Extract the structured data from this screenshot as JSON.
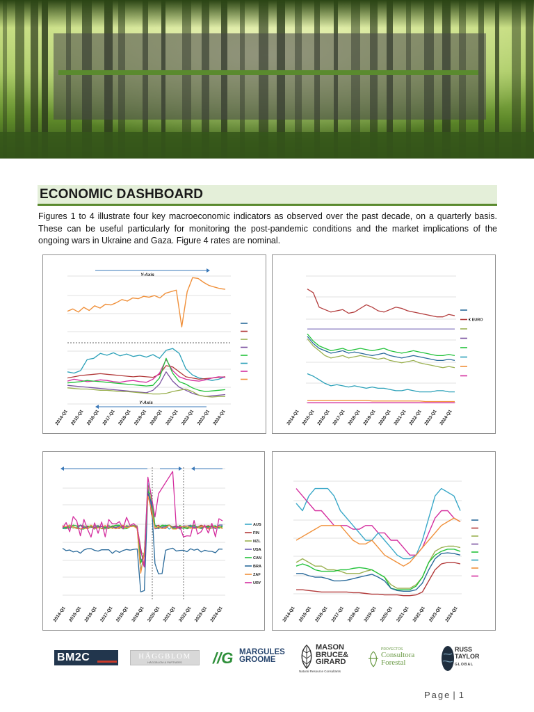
{
  "header": {
    "title": "ECONOMIC DASHBOARD",
    "intro": "Figures 1 to 4 illustrate four key macroeconomic indicators as observed over the past decade, on a quarterly basis. These can be useful particularly for monitoring the post-pandemic conditions and the market implications of the ongoing wars in Ukraine and Gaza. Figure 4 rates are nominal."
  },
  "colors": {
    "accent": "#5a8a2e",
    "title_bg": "#e4efd9"
  },
  "chart_data": [
    {
      "type": "line",
      "x_ticks": [
        "2014-Q1",
        "2015-Q1",
        "2016-Q1",
        "2017-Q1",
        "2018-Q1",
        "2019-Q1",
        "2020-Q1",
        "2021-Q1",
        "2022-Q1",
        "2023-Q1",
        "2024-Q1"
      ],
      "annotations": [
        "Y-Axis",
        "Y-Axis"
      ],
      "grid": true,
      "legend": "right",
      "series": [
        {
          "color": "#f0903a",
          "panel": "upper",
          "values": [
            55,
            58,
            54,
            60,
            56,
            62,
            59,
            64,
            63,
            66,
            70,
            68,
            72,
            71,
            74,
            73,
            75,
            72,
            78,
            80,
            82,
            35,
            80,
            98,
            97,
            92,
            88,
            86,
            84,
            83
          ]
        },
        {
          "color": "#2aa0b8",
          "values": [
            50,
            48,
            52,
            70,
            72,
            80,
            77,
            81,
            76,
            79,
            75,
            77,
            74,
            78,
            72,
            85,
            88,
            80,
            55,
            45,
            40,
            38,
            36,
            38,
            42
          ]
        },
        {
          "color": "#b23a3a",
          "values": [
            40,
            42,
            44,
            45,
            46,
            47,
            46,
            45,
            44,
            43,
            42,
            43,
            42,
            41,
            46,
            60,
            58,
            50,
            42,
            40,
            38,
            39,
            40,
            41,
            42
          ]
        },
        {
          "color": "#d42d9e",
          "values": [
            35,
            38,
            36,
            34,
            35,
            37,
            36,
            34,
            33,
            35,
            36,
            34,
            33,
            38,
            48,
            70,
            52,
            42,
            38,
            36,
            35,
            37,
            40,
            42,
            41
          ]
        },
        {
          "color": "#22c23a",
          "values": [
            32,
            33,
            34,
            36,
            35,
            34,
            33,
            32,
            31,
            30,
            29,
            28,
            27,
            28,
            40,
            72,
            48,
            34,
            30,
            24,
            20,
            18,
            19,
            20,
            21
          ]
        },
        {
          "color": "#7a52a0",
          "values": [
            28,
            27,
            26,
            25,
            24,
            23,
            22,
            21,
            20,
            19,
            18,
            17,
            16,
            20,
            30,
            50,
            35,
            25,
            20,
            15,
            12,
            10,
            11,
            12,
            13
          ]
        },
        {
          "color": "#9ab050",
          "values": [
            24,
            23,
            22,
            22,
            21,
            20,
            20,
            19,
            18,
            18,
            17,
            16,
            15,
            14,
            14,
            15,
            18,
            20,
            22,
            18,
            12,
            10,
            9,
            10,
            10
          ]
        }
      ]
    },
    {
      "type": "line",
      "x_ticks": [
        "2014-Q1",
        "2015-Q1",
        "2016-Q1",
        "2017-Q1",
        "2018-Q1",
        "2019-Q1",
        "2020-Q1",
        "2021-Q1",
        "2022-Q1",
        "2023-Q1",
        "2024-Q1"
      ],
      "legend": "right",
      "legend_labels": [
        "€ EURO"
      ],
      "series": [
        {
          "color": "#b23a3a",
          "values": [
            95,
            92,
            80,
            78,
            76,
            77,
            78,
            75,
            76,
            79,
            82,
            80,
            77,
            76,
            78,
            80,
            79,
            77,
            76,
            75,
            74,
            73,
            72,
            72,
            74,
            73
          ]
        },
        {
          "color": "#6a5ab0",
          "values": [
            62,
            62,
            62,
            62,
            62,
            62,
            62,
            62,
            62,
            62,
            62,
            62,
            62,
            62,
            62,
            62,
            62,
            62,
            62,
            62,
            62,
            62,
            62,
            62,
            62,
            62
          ]
        },
        {
          "color": "#22c23a",
          "values": [
            58,
            52,
            48,
            46,
            44,
            45,
            46,
            44,
            45,
            46,
            45,
            44,
            45,
            46,
            44,
            43,
            42,
            43,
            44,
            43,
            42,
            41,
            40,
            40,
            41,
            40
          ]
        },
        {
          "color": "#9ab050",
          "values": [
            54,
            48,
            44,
            40,
            38,
            39,
            40,
            38,
            39,
            40,
            39,
            38,
            37,
            38,
            36,
            35,
            34,
            35,
            36,
            34,
            33,
            32,
            31,
            30,
            31,
            30
          ]
        },
        {
          "color": "#2a6a9a",
          "values": [
            56,
            50,
            46,
            44,
            42,
            43,
            44,
            42,
            43,
            42,
            41,
            40,
            41,
            42,
            40,
            39,
            38,
            39,
            40,
            39,
            38,
            37,
            36,
            36,
            37,
            36
          ]
        },
        {
          "color": "#2aa0b8",
          "values": [
            25,
            23,
            20,
            17,
            15,
            16,
            15,
            14,
            15,
            14,
            13,
            14,
            13,
            13,
            12,
            11,
            11,
            12,
            11,
            10,
            10,
            10,
            11,
            11,
            10,
            10
          ]
        },
        {
          "color": "#f0903a",
          "values": [
            3,
            3,
            3,
            3,
            3,
            3,
            3,
            3,
            3,
            3,
            3,
            2.5,
            2.5,
            2.5,
            2.5,
            2.5,
            2.5,
            2.5,
            2.5,
            2.5,
            2,
            2,
            2,
            2,
            2,
            2
          ]
        },
        {
          "color": "#d42d9e",
          "values": [
            1,
            1,
            1,
            1,
            1,
            1,
            1,
            1,
            1,
            1,
            1,
            1,
            1,
            1,
            1,
            1,
            1,
            1,
            1,
            1,
            1,
            1,
            1,
            1,
            1,
            1
          ]
        }
      ]
    },
    {
      "type": "line",
      "x_ticks": [
        "2014-Q1",
        "2015-Q1",
        "2016-Q1",
        "2017-Q1",
        "2018-Q1",
        "2019-Q1",
        "2020-Q1",
        "2021-Q1",
        "2022-Q1",
        "2023-Q1",
        "2024-Q1"
      ],
      "legend": "right",
      "legend_labels": [
        "AUS",
        "FIN",
        "NZL",
        "USA",
        "CAN",
        "BRA",
        "ZAF",
        "URY"
      ],
      "series": [
        {
          "name": "AUS",
          "color": "#3aa8c8"
        },
        {
          "name": "FIN",
          "color": "#b23a3a"
        },
        {
          "name": "NZL",
          "color": "#9ab050"
        },
        {
          "name": "USA",
          "color": "#6a5ab0"
        },
        {
          "name": "CAN",
          "color": "#22c23a"
        },
        {
          "name": "BRA",
          "color": "#2a6a9a"
        },
        {
          "name": "ZAF",
          "color": "#f0903a"
        },
        {
          "name": "URY",
          "color": "#d42d9e"
        }
      ]
    },
    {
      "type": "line",
      "x_ticks": [
        "2014-Q1",
        "2015-Q1",
        "2016-Q1",
        "2017-Q1",
        "2018-Q1",
        "2019-Q1",
        "2020-Q1",
        "2021-Q1",
        "2022-Q1",
        "2023-Q1",
        "2024-Q1"
      ],
      "legend": "right",
      "series": [
        {
          "color": "#d42d9e",
          "values": [
            14,
            13,
            12,
            11,
            11,
            10,
            9,
            9,
            9,
            8.5,
            8.5,
            9,
            9,
            8,
            8,
            7,
            7,
            6,
            5,
            5,
            6,
            8,
            10,
            11,
            11,
            10,
            9.5
          ]
        },
        {
          "color": "#3aa8c8",
          "values": [
            12,
            11,
            13,
            14,
            14,
            14,
            13,
            11,
            10,
            9,
            8,
            7,
            7,
            8,
            7,
            6,
            5,
            4.5,
            4.5,
            5,
            7,
            10,
            13,
            14,
            13.5,
            13,
            11
          ]
        },
        {
          "color": "#f0903a",
          "values": [
            7,
            7.5,
            8,
            8.5,
            9,
            9,
            9,
            9,
            8,
            7,
            6.5,
            6.5,
            7,
            6,
            5,
            4.5,
            4,
            3.5,
            4,
            5,
            6,
            7,
            8,
            9,
            9.5,
            10,
            9.5
          ]
        },
        {
          "color": "#9ab050",
          "values": [
            4,
            4.5,
            4,
            3.5,
            3.5,
            3,
            3,
            2.8,
            2.5,
            2.5,
            2.5,
            2.8,
            3,
            2.5,
            2,
            1,
            0.5,
            0.5,
            0.5,
            1,
            2,
            4,
            5.5,
            6,
            6.2,
            6.2,
            6
          ]
        },
        {
          "color": "#22c23a",
          "values": [
            3.5,
            3.8,
            3.5,
            3,
            2.8,
            2.8,
            2.8,
            3,
            3,
            3.2,
            3.3,
            3.2,
            3,
            2.5,
            2,
            0.5,
            0.3,
            0.3,
            0.3,
            0.8,
            2,
            4,
            5,
            5.5,
            5.8,
            5.8,
            5.5
          ]
        },
        {
          "color": "#2a6a9a",
          "values": [
            2.5,
            2.5,
            2.2,
            2,
            2,
            1.8,
            1.5,
            1.5,
            1.6,
            1.8,
            2,
            2.2,
            2.4,
            2,
            1.5,
            0.5,
            0.2,
            0.1,
            0.1,
            0.3,
            1.2,
            3,
            4.5,
            5.2,
            5.3,
            5.2,
            5
          ]
        },
        {
          "color": "#b23a3a",
          "values": [
            0.3,
            0.3,
            0.2,
            0.1,
            0,
            0,
            0,
            0,
            0,
            -0.1,
            -0.1,
            -0.2,
            -0.3,
            -0.3,
            -0.4,
            -0.4,
            -0.4,
            -0.5,
            -0.5,
            -0.4,
            0,
            1.5,
            3,
            3.8,
            4,
            4,
            3.8
          ]
        }
      ]
    }
  ],
  "logos": {
    "bm2c": "BM2C",
    "haggblom": "HÄGGBLOM",
    "haggblom_sub": "HÄGGBLOM & PARTNERS",
    "margules_1": "MARGULES",
    "margules_2": "GROOME",
    "mbg_1": "MASON",
    "mbg_2": "BRUCE&",
    "mbg_3": "GIRARD",
    "mbg_sub": "Natural Resource Consultants",
    "pf_1": "PROYECTOS",
    "pf_2": "Consultora",
    "pf_3": "Forestal",
    "rt_1": "RUSS",
    "rt_2": "TAYLOR",
    "rt_3": "GLOBAL"
  },
  "footer": {
    "page_label": "Page",
    "page_number": "1"
  }
}
